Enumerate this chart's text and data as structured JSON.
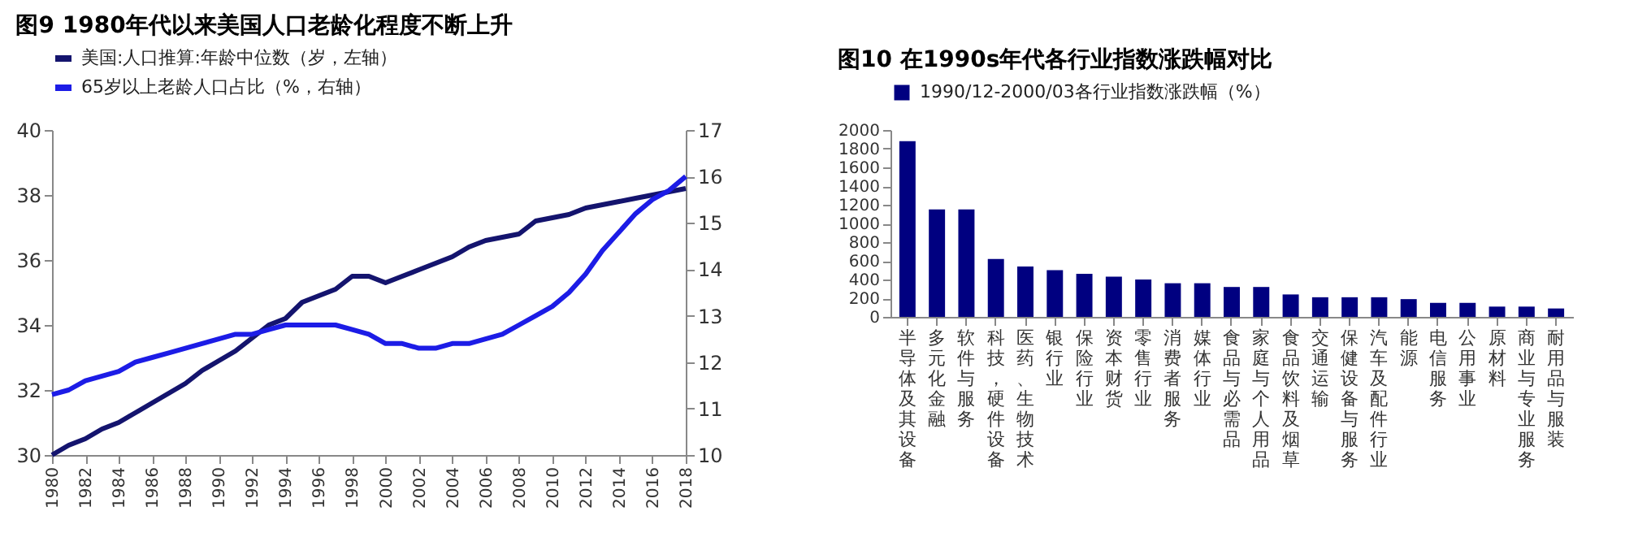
{
  "chart_data": [
    {
      "type": "line",
      "title": "图9  1980年代以来美国人口老龄化程度不断上升",
      "x": [
        1980,
        1981,
        1982,
        1983,
        1984,
        1985,
        1986,
        1987,
        1988,
        1989,
        1990,
        1991,
        1992,
        1993,
        1994,
        1995,
        1996,
        1997,
        1998,
        1999,
        2000,
        2001,
        2002,
        2003,
        2004,
        2005,
        2006,
        2007,
        2008,
        2009,
        2010,
        2011,
        2012,
        2013,
        2014,
        2015,
        2016,
        2017,
        2018
      ],
      "series": [
        {
          "name": "美国:人口推算:年龄中位数（岁，左轴）",
          "color": "#14146e",
          "values": [
            30.0,
            30.3,
            30.5,
            30.8,
            31.0,
            31.3,
            31.6,
            31.9,
            32.2,
            32.6,
            32.9,
            33.2,
            33.6,
            34.0,
            34.2,
            34.7,
            34.9,
            35.1,
            35.5,
            35.5,
            35.3,
            35.5,
            35.7,
            35.9,
            36.1,
            36.4,
            36.6,
            36.7,
            36.8,
            37.2,
            37.3,
            37.4,
            37.6,
            37.7,
            37.8,
            37.9,
            38.0,
            38.1,
            38.2
          ]
        },
        {
          "name": "65岁以上老龄人口占比（%，右轴）",
          "color": "#1c1ce6",
          "axis": "y2",
          "values": [
            11.3,
            11.4,
            11.6,
            11.7,
            11.8,
            12.0,
            12.1,
            12.2,
            12.3,
            12.4,
            12.5,
            12.6,
            12.6,
            12.7,
            12.8,
            12.8,
            12.8,
            12.8,
            12.7,
            12.6,
            12.4,
            12.4,
            12.3,
            12.3,
            12.4,
            12.4,
            12.5,
            12.6,
            12.8,
            13.0,
            13.2,
            13.5,
            13.9,
            14.4,
            14.8,
            15.2,
            15.5,
            15.7,
            16.0
          ]
        }
      ],
      "xlim": [
        1980,
        2018
      ],
      "xticks": [
        1980,
        1982,
        1984,
        1986,
        1988,
        1990,
        1992,
        1994,
        1996,
        1998,
        2000,
        2002,
        2004,
        2006,
        2008,
        2010,
        2012,
        2014,
        2016,
        2018
      ],
      "ylim": [
        30,
        40
      ],
      "yticks": [
        30,
        32,
        34,
        36,
        38,
        40
      ],
      "y2lim": [
        10,
        17
      ],
      "y2ticks": [
        10,
        11,
        12,
        13,
        14,
        15,
        16,
        17
      ],
      "legend": "top",
      "grid": false
    },
    {
      "type": "bar",
      "title": "图10 在1990s年代各行业指数涨跌幅对比",
      "categories": [
        "半导体及其设备",
        "多元化金融",
        "软件与服务",
        "科技，硬件设备",
        "医药、生物技术",
        "银行业",
        "保险行业",
        "资本财货",
        "零售行业",
        "消费者服务",
        "媒体行业",
        "食品与必需品",
        "家庭与个人用品",
        "食品饮料及烟草",
        "交通运输",
        "保健设备与服务",
        "汽车及配件行业",
        "能源",
        "电信服务",
        "公用事业",
        "原材料",
        "商业与专业服务",
        "耐用品与服装"
      ],
      "series": [
        {
          "name": "1990/12-2000/03各行业指数涨跌幅（%）",
          "color": "#000080",
          "values": [
            1880,
            1150,
            1150,
            620,
            540,
            500,
            460,
            430,
            400,
            360,
            360,
            320,
            320,
            240,
            210,
            210,
            210,
            190,
            150,
            150,
            110,
            110,
            90
          ]
        }
      ],
      "ylim": [
        0,
        2000
      ],
      "yticks": [
        0,
        200,
        400,
        600,
        800,
        1000,
        1200,
        1400,
        1600,
        1800,
        2000
      ],
      "legend": "top",
      "grid": false
    }
  ]
}
